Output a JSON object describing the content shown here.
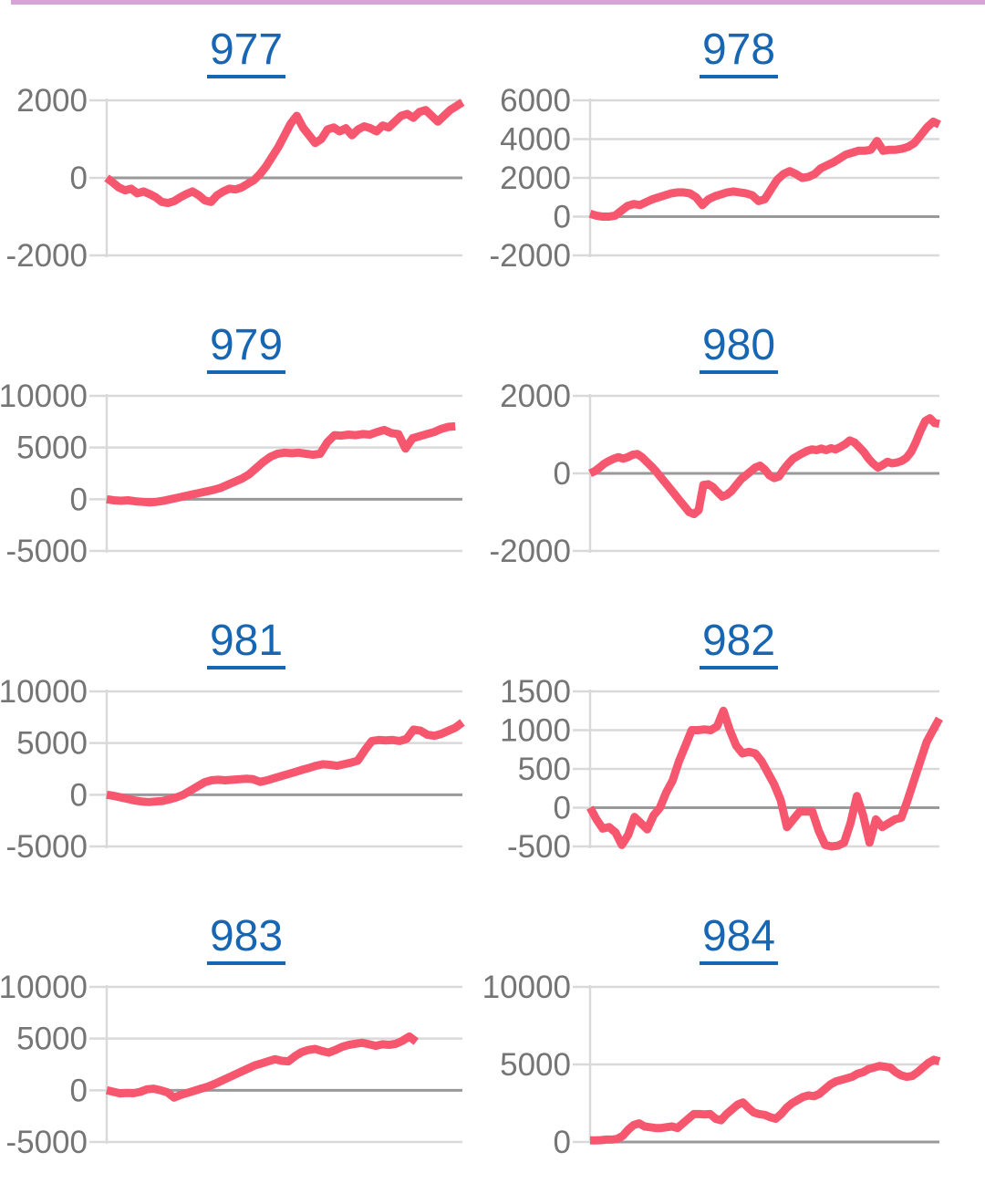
{
  "page": {
    "top_bar_color": "#d5a3d6",
    "background": "#ffffff"
  },
  "colors": {
    "line": "#f7576e",
    "title": "#1766b4",
    "grid": "#d9d9d9",
    "zero_line": "#999999",
    "axis_line": "#d9d9d9",
    "label": "#757575"
  },
  "chart_data": [
    {
      "type": "line",
      "title": "977",
      "ylabels": [
        2000,
        0,
        -2000
      ],
      "ymax": 2000,
      "ymin": -2000,
      "x": "index, evenly spaced; no x-axis labels shown",
      "grid": "horizontal only",
      "legend": "none",
      "end_frac": 1,
      "values": [
        0,
        -120,
        -250,
        -320,
        -280,
        -400,
        -350,
        -420,
        -500,
        -620,
        -650,
        -600,
        -500,
        -420,
        -350,
        -450,
        -580,
        -620,
        -450,
        -350,
        -280,
        -300,
        -250,
        -150,
        -60,
        100,
        300,
        550,
        800,
        1100,
        1400,
        1600,
        1300,
        1100,
        900,
        1000,
        1250,
        1300,
        1200,
        1280,
        1100,
        1250,
        1330,
        1280,
        1200,
        1350,
        1300,
        1450,
        1600,
        1650,
        1550,
        1700,
        1750,
        1600,
        1450,
        1600,
        1750,
        1850,
        1950
      ]
    },
    {
      "type": "line",
      "title": "978",
      "ylabels": [
        6000,
        4000,
        2000,
        0,
        -2000
      ],
      "ymax": 6000,
      "ymin": -2000,
      "x": "index, evenly spaced; no x-axis labels shown",
      "grid": "horizontal only",
      "legend": "none",
      "end_frac": 1,
      "values": [
        150,
        50,
        0,
        0,
        50,
        300,
        550,
        650,
        600,
        750,
        900,
        1000,
        1100,
        1200,
        1250,
        1250,
        1200,
        1000,
        600,
        900,
        1050,
        1150,
        1250,
        1300,
        1250,
        1200,
        1100,
        800,
        900,
        1400,
        1900,
        2200,
        2350,
        2200,
        2000,
        2050,
        2200,
        2500,
        2650,
        2800,
        3000,
        3200,
        3300,
        3400,
        3400,
        3450,
        3900,
        3400,
        3450,
        3450,
        3500,
        3600,
        3800,
        4200,
        4600,
        4900,
        4750
      ]
    },
    {
      "type": "line",
      "title": "979",
      "ylabels": [
        10000,
        5000,
        0,
        -5000
      ],
      "ymax": 10000,
      "ymin": -5000,
      "x": "index, evenly spaced; no x-axis labels shown",
      "grid": "horizontal only",
      "legend": "none",
      "end_frac": 0.98,
      "values": [
        0,
        -100,
        -150,
        -100,
        -200,
        -250,
        -300,
        -250,
        -150,
        0,
        150,
        300,
        450,
        600,
        750,
        900,
        1100,
        1400,
        1700,
        2000,
        2400,
        3000,
        3600,
        4100,
        4400,
        4500,
        4450,
        4500,
        4400,
        4300,
        4400,
        5500,
        6200,
        6150,
        6250,
        6200,
        6300,
        6250,
        6500,
        6700,
        6400,
        6300,
        4900,
        5900,
        6100,
        6300,
        6500,
        6800,
        7000,
        7050
      ]
    },
    {
      "type": "line",
      "title": "980",
      "ylabels": [
        2000,
        0,
        -2000
      ],
      "ymax": 2000,
      "ymin": -2000,
      "x": "index, evenly spaced; no x-axis labels shown",
      "grid": "horizontal only",
      "legend": "none",
      "end_frac": 1,
      "values": [
        0,
        60,
        150,
        250,
        320,
        380,
        420,
        380,
        420,
        480,
        500,
        420,
        300,
        180,
        50,
        -100,
        -250,
        -400,
        -550,
        -700,
        -850,
        -1000,
        -1050,
        -950,
        -300,
        -280,
        -350,
        -480,
        -600,
        -550,
        -450,
        -300,
        -150,
        -50,
        50,
        150,
        200,
        100,
        -50,
        -120,
        -80,
        100,
        250,
        380,
        450,
        520,
        580,
        620,
        600,
        640,
        600,
        650,
        620,
        680,
        750,
        850,
        800,
        680,
        550,
        380,
        250,
        150,
        220,
        300,
        260,
        280,
        320,
        400,
        550,
        800,
        1100,
        1350,
        1420,
        1300,
        1280
      ]
    },
    {
      "type": "line",
      "title": "981",
      "ylabels": [
        10000,
        5000,
        0,
        -5000
      ],
      "ymax": 10000,
      "ymin": -5000,
      "x": "index, evenly spaced; no x-axis labels shown",
      "grid": "horizontal only",
      "legend": "none",
      "end_frac": 1,
      "values": [
        0,
        -100,
        -250,
        -400,
        -550,
        -650,
        -700,
        -650,
        -600,
        -450,
        -250,
        0,
        400,
        800,
        1200,
        1400,
        1450,
        1400,
        1450,
        1500,
        1550,
        1500,
        1250,
        1400,
        1600,
        1800,
        2000,
        2200,
        2400,
        2600,
        2800,
        2950,
        2900,
        2800,
        2950,
        3100,
        3300,
        4300,
        5200,
        5300,
        5250,
        5300,
        5200,
        5400,
        6300,
        6200,
        5800,
        5700,
        5900,
        6200,
        6500,
        7000
      ]
    },
    {
      "type": "line",
      "title": "982",
      "ylabels": [
        1500,
        1000,
        500,
        0,
        -500
      ],
      "ymax": 1500,
      "ymin": -500,
      "x": "index, evenly spaced; no x-axis labels shown",
      "grid": "horizontal only",
      "legend": "none",
      "end_frac": 1,
      "values": [
        0,
        -150,
        -270,
        -250,
        -320,
        -480,
        -350,
        -120,
        -200,
        -280,
        -100,
        0,
        200,
        350,
        600,
        800,
        1000,
        1000,
        1010,
        1000,
        1050,
        1250,
        1000,
        800,
        700,
        720,
        700,
        600,
        450,
        300,
        100,
        -250,
        -150,
        -50,
        -50,
        -50,
        -300,
        -480,
        -500,
        -490,
        -450,
        -200,
        150,
        -100,
        -450,
        -150,
        -250,
        -200,
        -150,
        -130,
        100,
        350,
        600,
        850,
        1000,
        1150
      ]
    },
    {
      "type": "line",
      "title": "983",
      "ylabels": [
        10000,
        5000,
        0,
        -5000
      ],
      "ymax": 10000,
      "ymin": -5000,
      "x": "index, evenly spaced; no x-axis labels shown",
      "grid": "horizontal only",
      "legend": "none",
      "end_frac": 0.87,
      "values": [
        0,
        -150,
        -300,
        -250,
        -280,
        -150,
        100,
        150,
        0,
        -200,
        -700,
        -450,
        -250,
        -50,
        150,
        350,
        600,
        900,
        1200,
        1500,
        1800,
        2100,
        2400,
        2600,
        2800,
        3000,
        2850,
        2800,
        3300,
        3700,
        3900,
        4000,
        3800,
        3650,
        3900,
        4200,
        4400,
        4500,
        4600,
        4450,
        4300,
        4450,
        4400,
        4500,
        4800,
        5200,
        4700
      ]
    },
    {
      "type": "line",
      "title": "984",
      "ylabels": [
        10000,
        5000,
        0
      ],
      "ymax": 10000,
      "ymin": 0,
      "x": "index, evenly spaced; no x-axis labels shown",
      "grid": "horizontal only",
      "legend": "none",
      "end_frac": 1,
      "values": [
        100,
        100,
        120,
        150,
        150,
        200,
        400,
        800,
        1100,
        1200,
        1000,
        950,
        900,
        900,
        950,
        1000,
        900,
        1200,
        1500,
        1800,
        1800,
        1780,
        1800,
        1500,
        1400,
        1800,
        2100,
        2400,
        2550,
        2200,
        1900,
        1800,
        1750,
        1600,
        1500,
        1800,
        2200,
        2500,
        2700,
        2900,
        3000,
        2950,
        3100,
        3400,
        3700,
        3900,
        4000,
        4100,
        4200,
        4400,
        4500,
        4700,
        4800,
        4900,
        4850,
        4800,
        4500,
        4300,
        4200,
        4250,
        4500,
        4800,
        5100,
        5300,
        5200
      ]
    }
  ]
}
